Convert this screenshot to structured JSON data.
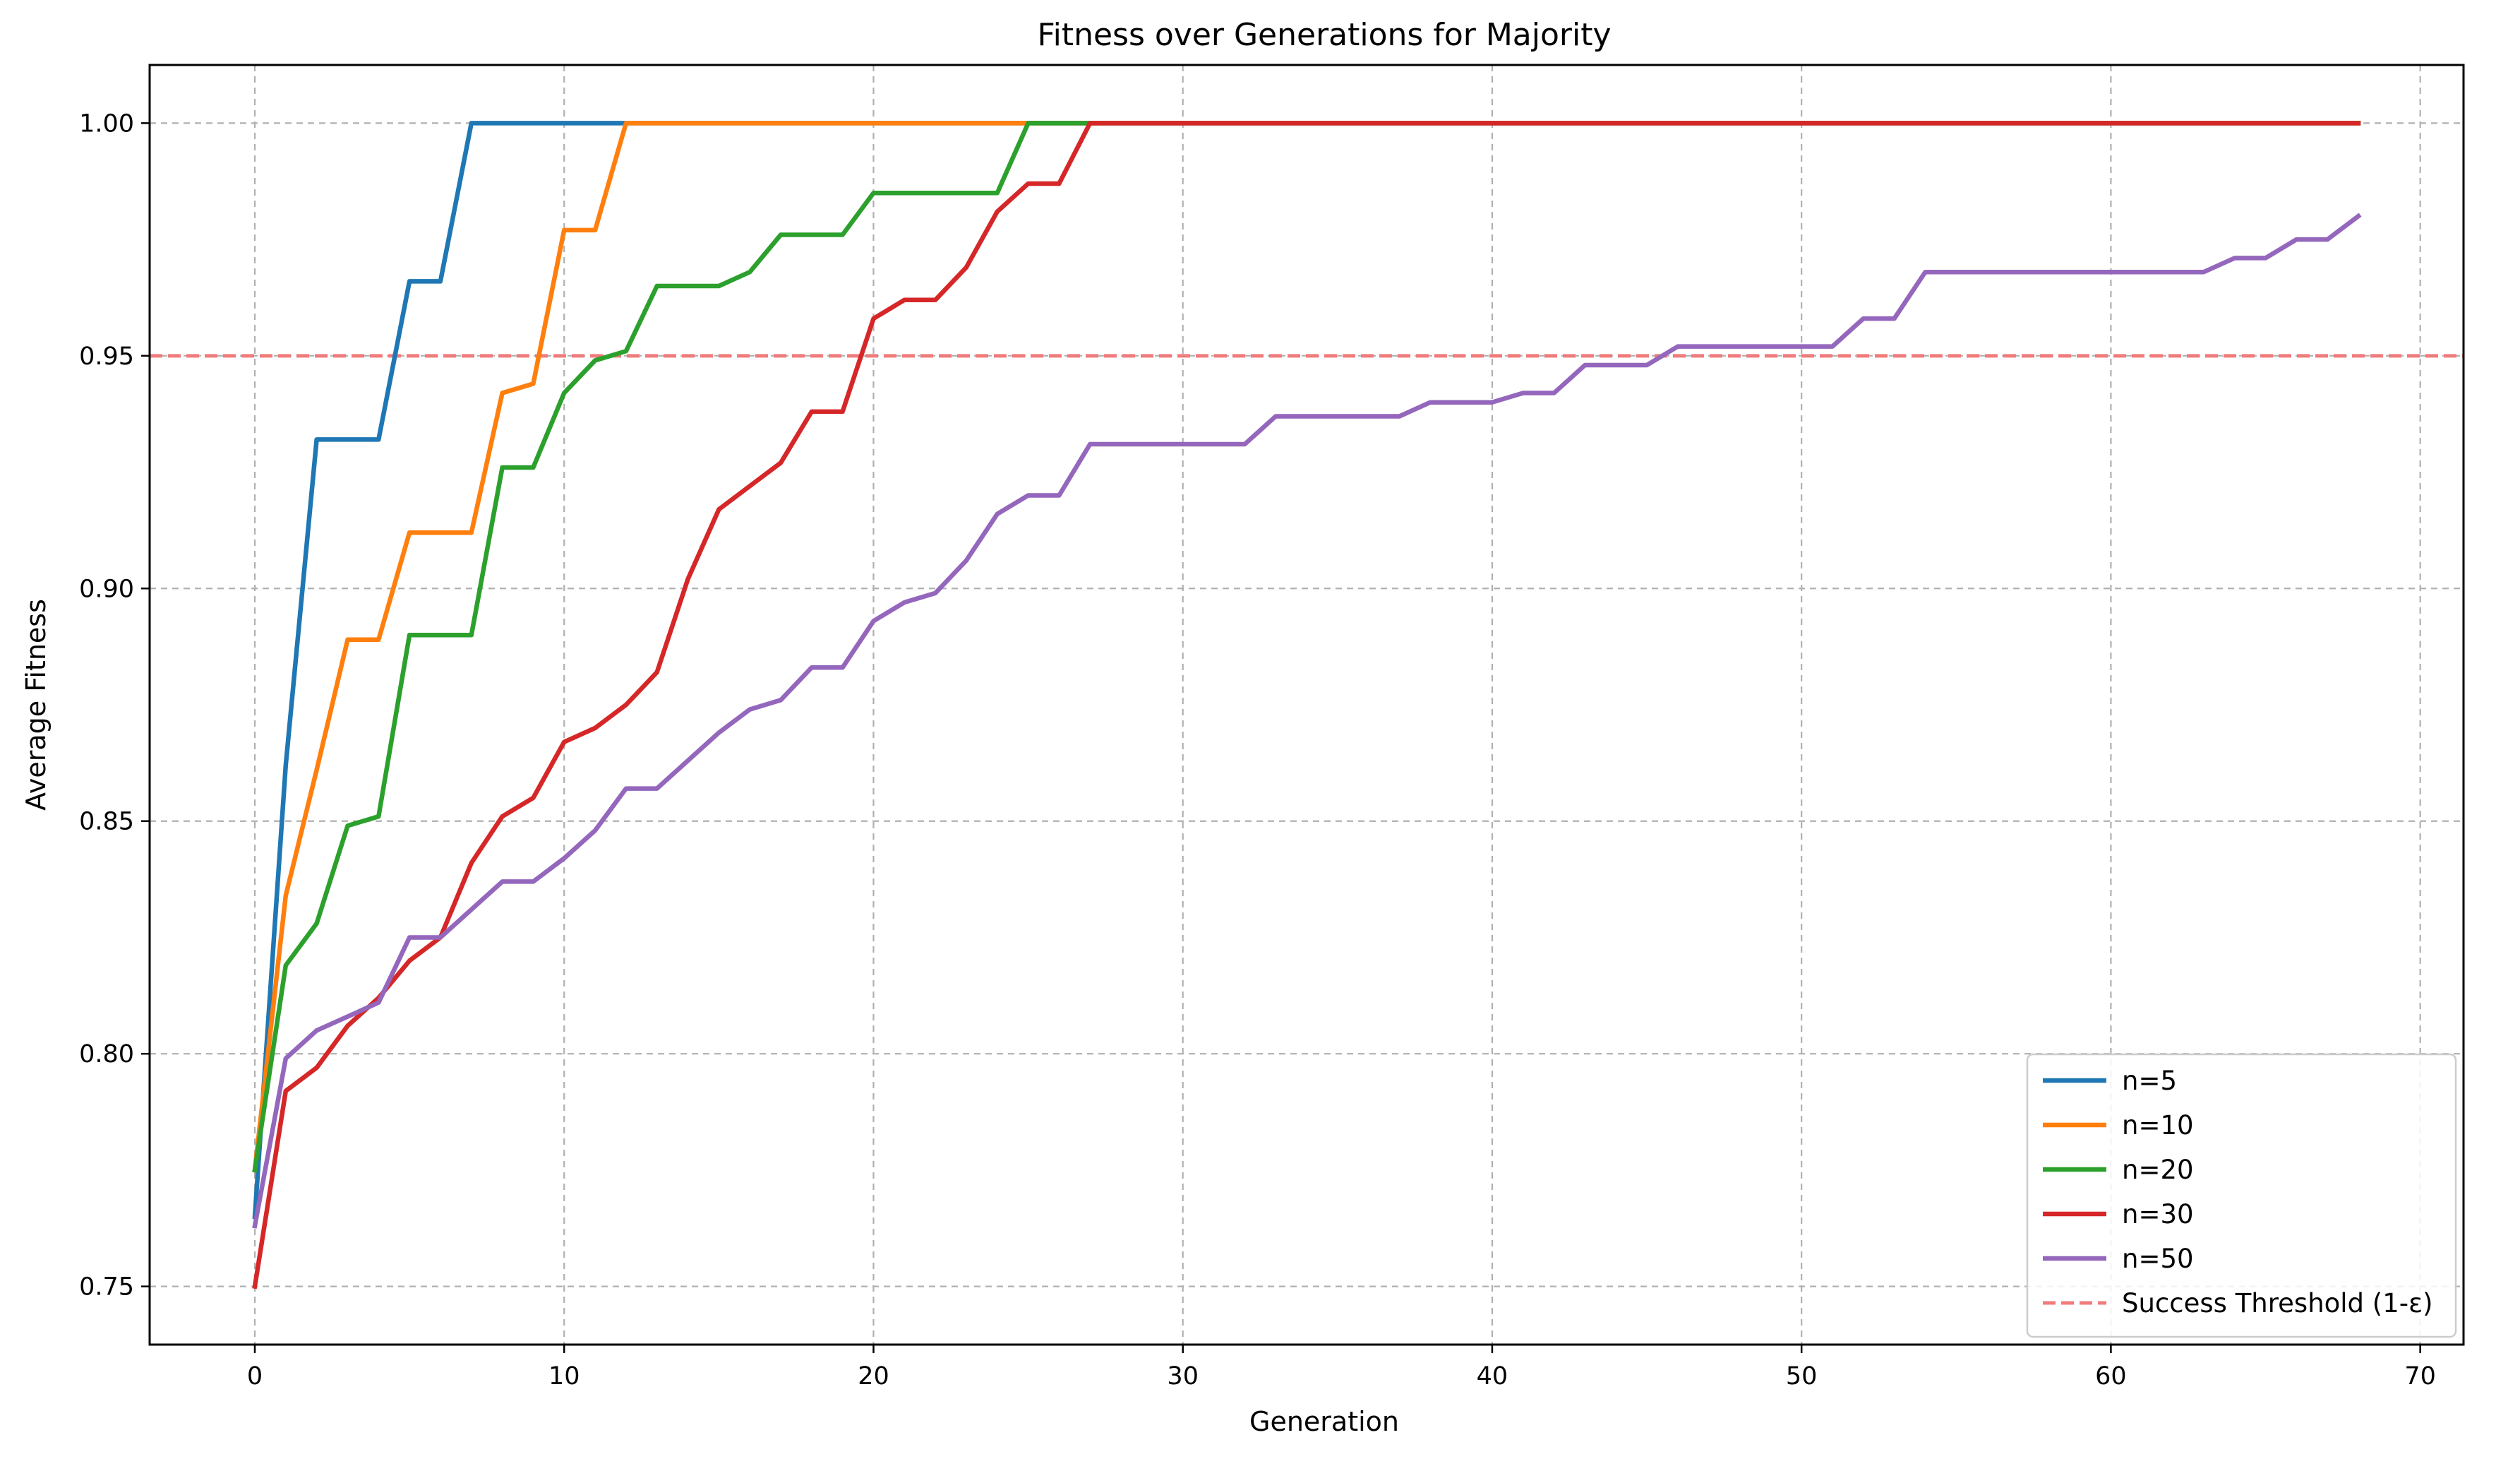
{
  "chart_data": {
    "type": "line",
    "title": "Fitness over Generations for Majority",
    "xlabel": "Generation",
    "ylabel": "Average Fitness",
    "xlim": [
      -3.4,
      71.4
    ],
    "ylim": [
      0.7375,
      1.0125
    ],
    "xticks": [
      0,
      10,
      20,
      30,
      40,
      50,
      60,
      70
    ],
    "xtick_labels": [
      "0",
      "10",
      "20",
      "30",
      "40",
      "50",
      "60",
      "70"
    ],
    "yticks": [
      0.75,
      0.8,
      0.85,
      0.9,
      0.95,
      1.0
    ],
    "ytick_labels": [
      "0.75",
      "0.80",
      "0.85",
      "0.90",
      "0.95",
      "1.00"
    ],
    "grid": true,
    "legend_position": "lower-right",
    "threshold": {
      "name": "Success Threshold (1-ε)",
      "value": 0.95,
      "color": "#f07b7b"
    },
    "series": [
      {
        "name": "n=5",
        "color": "#1f77b4",
        "x": [
          0,
          1,
          2,
          3,
          4,
          5,
          6,
          7,
          68
        ],
        "y": [
          0.765,
          0.862,
          0.932,
          0.932,
          0.932,
          0.966,
          0.966,
          1.0,
          1.0
        ]
      },
      {
        "name": "n=10",
        "color": "#ff7f0e",
        "x": [
          0,
          1,
          2,
          3,
          4,
          5,
          6,
          7,
          8,
          9,
          10,
          11,
          12,
          68
        ],
        "y": [
          0.775,
          0.834,
          0.861,
          0.889,
          0.889,
          0.912,
          0.912,
          0.912,
          0.942,
          0.944,
          0.977,
          0.977,
          1.0,
          1.0
        ]
      },
      {
        "name": "n=20",
        "color": "#2ca02c",
        "x": [
          0,
          1,
          2,
          3,
          4,
          5,
          6,
          7,
          8,
          9,
          10,
          11,
          12,
          13,
          14,
          15,
          16,
          17,
          18,
          19,
          20,
          21,
          22,
          23,
          24,
          25,
          26,
          27,
          68
        ],
        "y": [
          0.775,
          0.819,
          0.828,
          0.849,
          0.851,
          0.89,
          0.89,
          0.89,
          0.926,
          0.926,
          0.942,
          0.949,
          0.951,
          0.965,
          0.965,
          0.965,
          0.968,
          0.976,
          0.976,
          0.976,
          0.985,
          0.985,
          0.985,
          0.985,
          0.985,
          1.0,
          1.0,
          1.0,
          1.0
        ]
      },
      {
        "name": "n=30",
        "color": "#d62728",
        "x": [
          0,
          1,
          2,
          3,
          4,
          5,
          6,
          7,
          8,
          9,
          10,
          11,
          12,
          13,
          14,
          15,
          16,
          17,
          18,
          19,
          20,
          21,
          22,
          23,
          24,
          25,
          26,
          27,
          68
        ],
        "y": [
          0.75,
          0.792,
          0.797,
          0.806,
          0.812,
          0.82,
          0.825,
          0.841,
          0.851,
          0.855,
          0.867,
          0.87,
          0.875,
          0.882,
          0.902,
          0.917,
          0.922,
          0.927,
          0.938,
          0.938,
          0.958,
          0.962,
          0.962,
          0.969,
          0.981,
          0.987,
          0.987,
          1.0,
          1.0
        ]
      },
      {
        "name": "n=50",
        "color": "#9467bd",
        "x": [
          0,
          1,
          2,
          3,
          4,
          5,
          6,
          7,
          8,
          9,
          10,
          11,
          12,
          13,
          14,
          15,
          16,
          17,
          18,
          19,
          20,
          21,
          22,
          23,
          24,
          25,
          26,
          27,
          28,
          29,
          30,
          31,
          32,
          33,
          34,
          35,
          36,
          37,
          38,
          39,
          40,
          41,
          42,
          43,
          44,
          45,
          46,
          47,
          48,
          49,
          50,
          51,
          52,
          53,
          54,
          55,
          56,
          57,
          58,
          59,
          60,
          61,
          62,
          63,
          64,
          65,
          66,
          67,
          68
        ],
        "y": [
          0.763,
          0.799,
          0.805,
          0.808,
          0.811,
          0.825,
          0.825,
          0.831,
          0.837,
          0.837,
          0.842,
          0.848,
          0.857,
          0.857,
          0.863,
          0.869,
          0.874,
          0.876,
          0.883,
          0.883,
          0.893,
          0.897,
          0.899,
          0.906,
          0.916,
          0.92,
          0.92,
          0.931,
          0.931,
          0.931,
          0.931,
          0.931,
          0.931,
          0.937,
          0.937,
          0.937,
          0.937,
          0.937,
          0.94,
          0.94,
          0.94,
          0.942,
          0.942,
          0.948,
          0.948,
          0.948,
          0.952,
          0.952,
          0.952,
          0.952,
          0.952,
          0.952,
          0.958,
          0.958,
          0.968,
          0.968,
          0.968,
          0.968,
          0.968,
          0.968,
          0.968,
          0.968,
          0.968,
          0.968,
          0.971,
          0.971,
          0.975,
          0.975,
          0.98
        ]
      }
    ]
  }
}
